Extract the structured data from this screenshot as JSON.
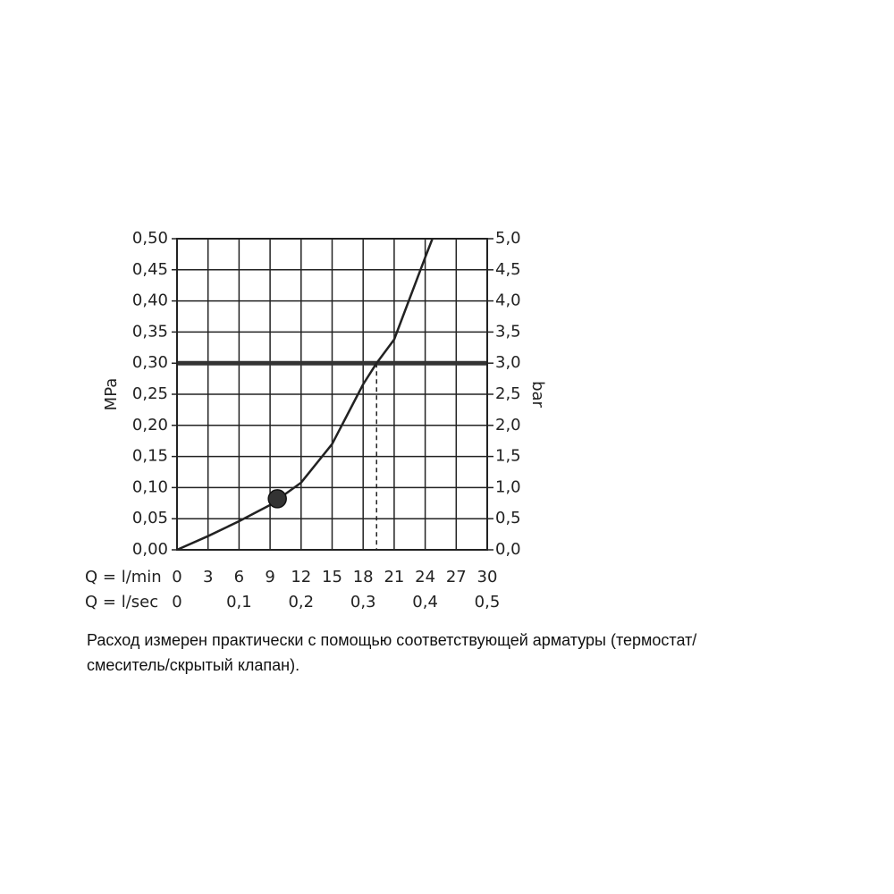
{
  "chart_data": {
    "type": "line",
    "x": [
      0,
      3,
      6,
      9,
      12,
      15,
      18,
      19.3,
      21,
      24,
      24.7
    ],
    "series": [
      {
        "color": "#222",
        "values": [
          0,
          0.022,
          0.046,
          0.072,
          0.108,
          0.17,
          0.266,
          0.3,
          0.338,
          0.47,
          0.5
        ]
      }
    ],
    "xlim": [
      0,
      30
    ],
    "xticks": [
      0,
      3,
      6,
      9,
      12,
      15,
      18,
      21,
      24,
      27,
      30
    ],
    "xlabel": "Q = l/min",
    "x2lim": [
      0,
      0.5
    ],
    "x2ticks": [
      0,
      {
        "value": 0.1,
        "label": "0,1"
      },
      {
        "value": 0.2,
        "label": "0,2"
      },
      {
        "value": 0.3,
        "label": "0,3"
      },
      {
        "value": 0.4,
        "label": "0,4"
      },
      {
        "value": 0.5,
        "label": "0,5"
      }
    ],
    "x2label": "Q = l/sec",
    "ylim": [
      0,
      0.5
    ],
    "yticks": [
      {
        "value": 0,
        "label": "0,00"
      },
      {
        "value": 0.05,
        "label": "0,05"
      },
      {
        "value": 0.1,
        "label": "0,10"
      },
      {
        "value": 0.15,
        "label": "0,15"
      },
      {
        "value": 0.2,
        "label": "0,20"
      },
      {
        "value": 0.25,
        "label": "0,25"
      },
      {
        "value": 0.3,
        "label": "0,30"
      },
      {
        "value": 0.35,
        "label": "0,35"
      },
      {
        "value": 0.4,
        "label": "0,40"
      },
      {
        "value": 0.45,
        "label": "0,45"
      },
      {
        "value": 0.5,
        "label": "0,50"
      }
    ],
    "ylabel": "MPa",
    "y2lim": [
      0,
      5
    ],
    "y2ticks": [
      {
        "value": 0,
        "label": "0,0"
      },
      {
        "value": 0.5,
        "label": "0,5"
      },
      {
        "value": 1,
        "label": "1,0"
      },
      {
        "value": 1.5,
        "label": "1,5"
      },
      {
        "value": 2,
        "label": "2,0"
      },
      {
        "value": 2.5,
        "label": "2,5"
      },
      {
        "value": 3,
        "label": "3,0"
      },
      {
        "value": 3.5,
        "label": "3,5"
      },
      {
        "value": 4,
        "label": "4,0"
      },
      {
        "value": 4.5,
        "label": "4,5"
      },
      {
        "value": 5,
        "label": "5,0"
      }
    ],
    "y2label": "bar",
    "grid": true,
    "hline": 0.3,
    "vline": 19.3,
    "marker": {
      "x": 9.7,
      "y": 0.082
    }
  },
  "caption": [
    "Расход измерен практически с помощью соответствующей арматуры (термостат/",
    "смеситель/скрытый клапан)."
  ]
}
